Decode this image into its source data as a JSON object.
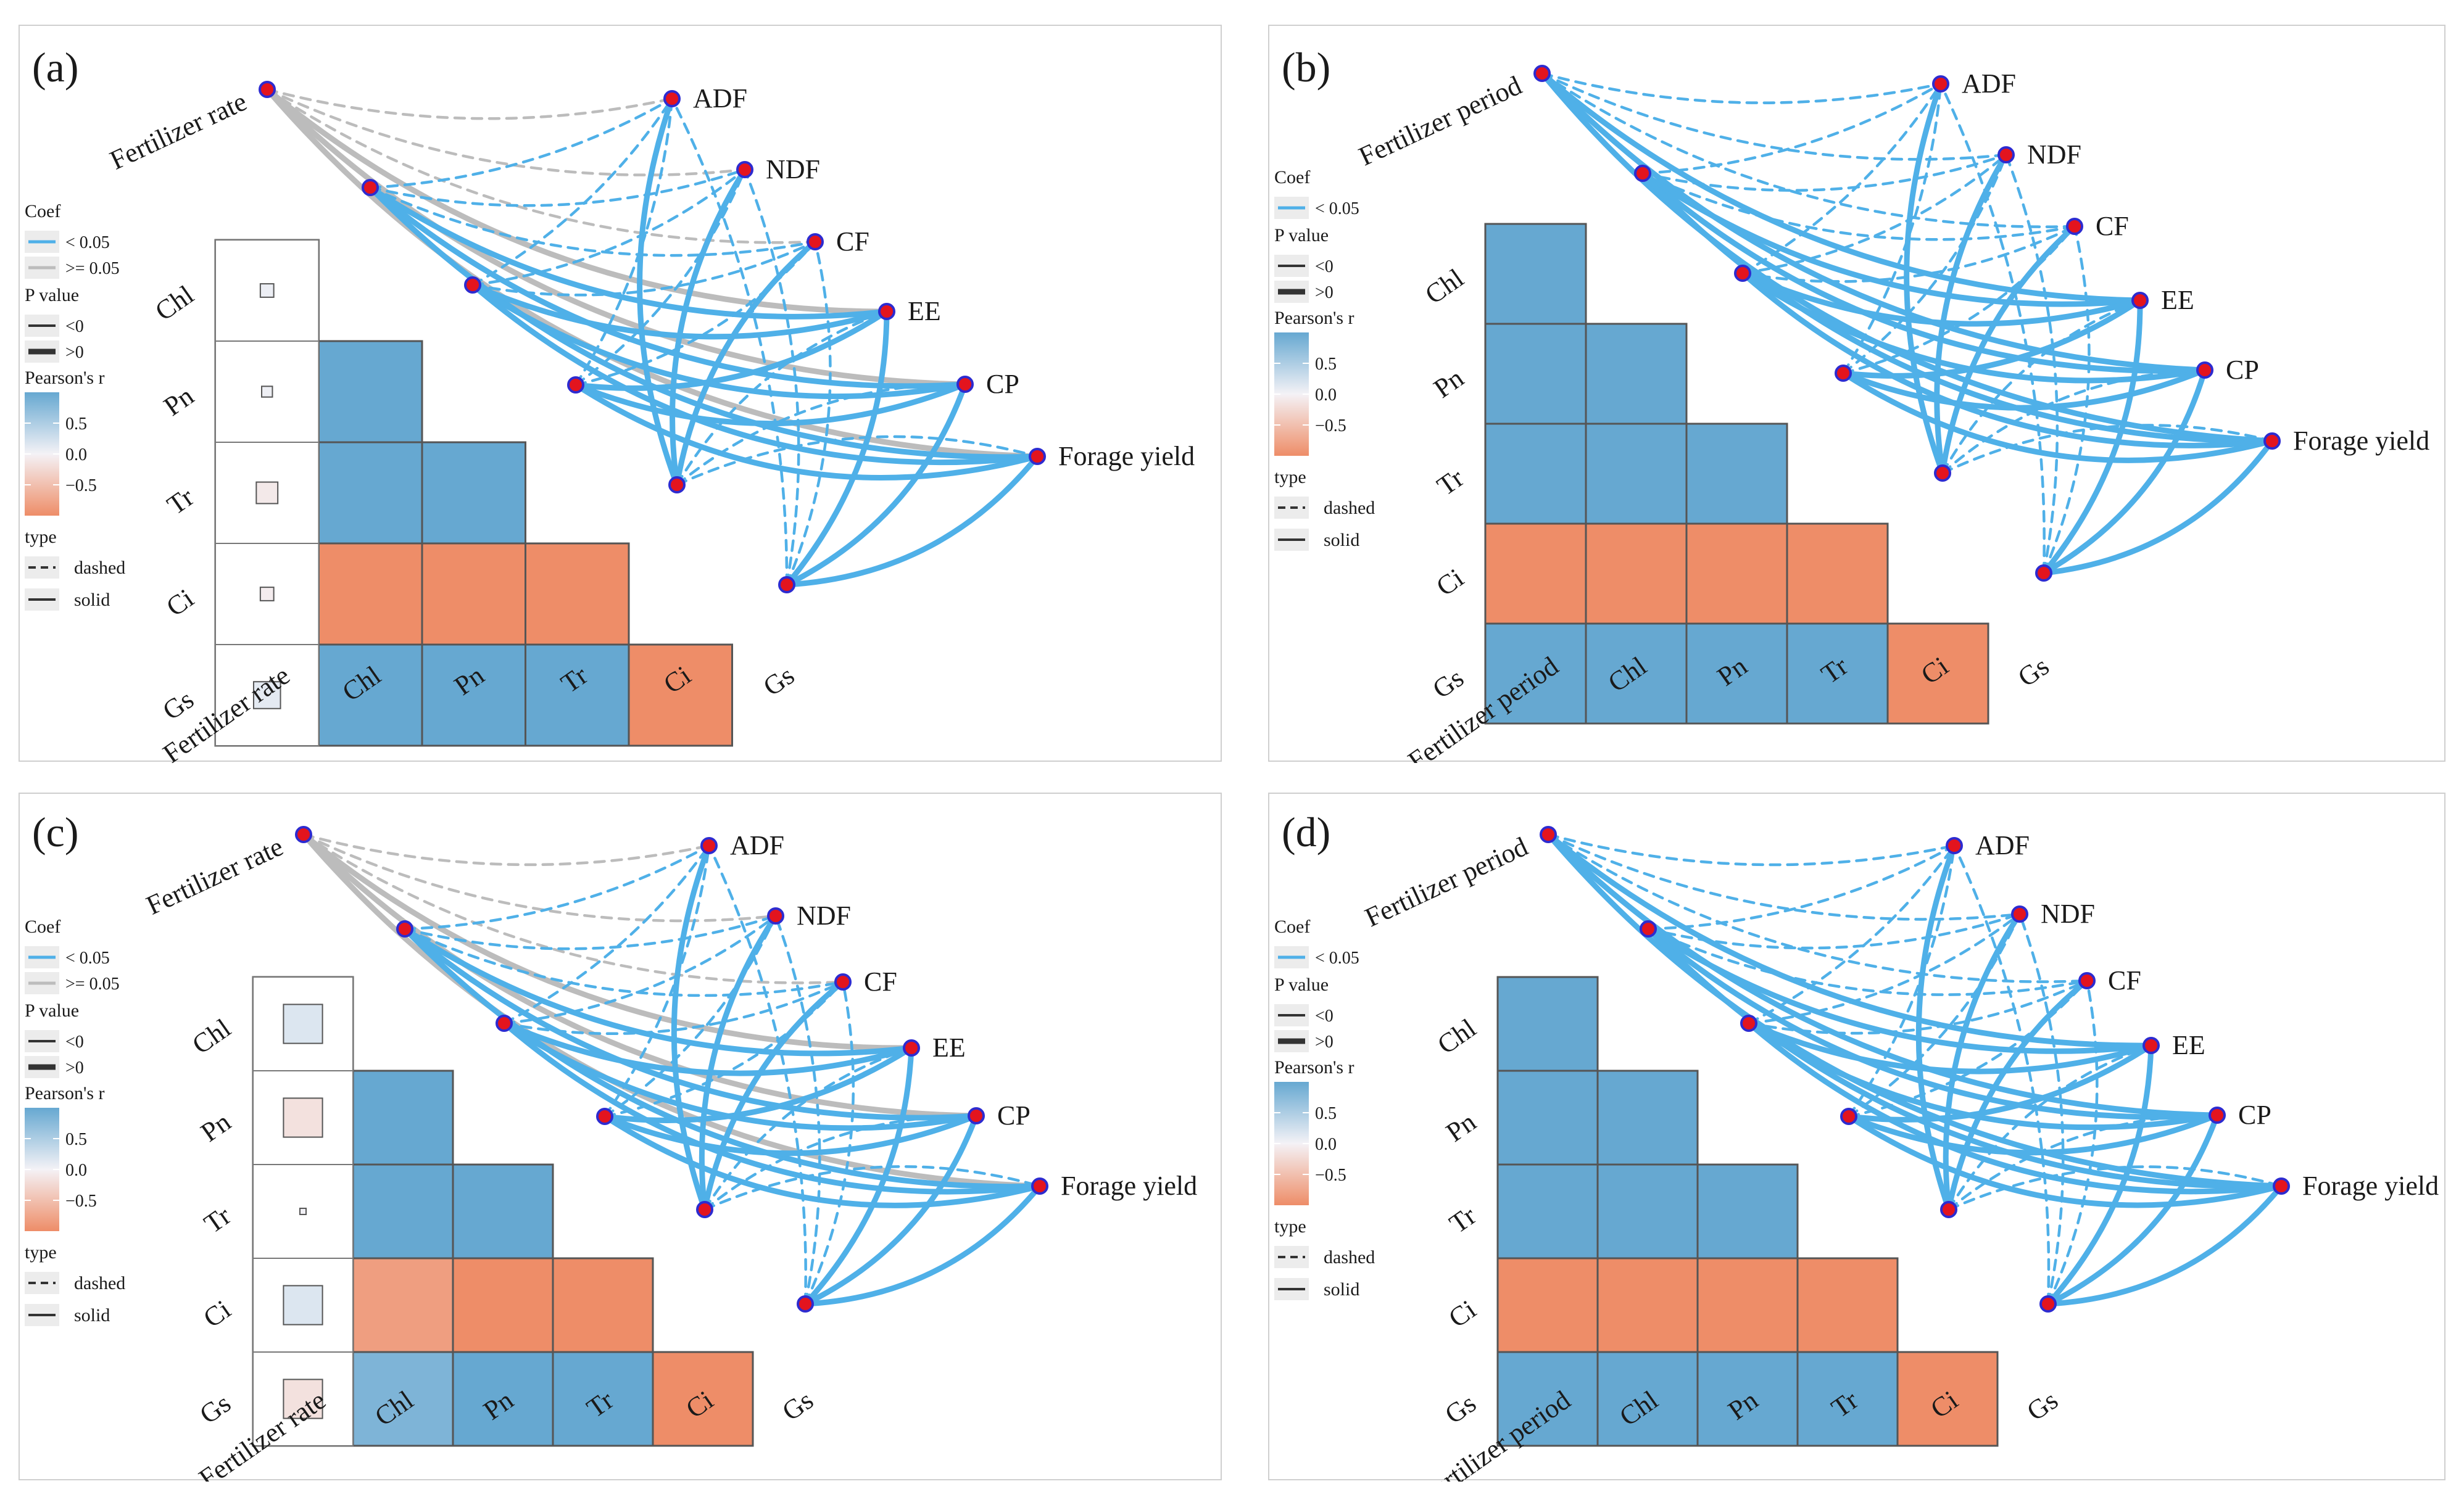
{
  "colors": {
    "pos": "#66a8d1",
    "neg": "#ee8d68",
    "sig": "#4fb0e8",
    "nonsig": "#bcbcbc",
    "node_fill": "#e3141e",
    "node_stroke": "#2d2bd0",
    "grid": "#555555"
  },
  "legend_text": {
    "coef_title": "Coef",
    "coef_sig": "< 0.05",
    "coef_nonsig": ">= 0.05",
    "p_title": "P value",
    "p_neg": "<0",
    "p_pos": ">0",
    "r_title": "Pearson's r",
    "r_ticks": [
      "0.5",
      "0.0",
      "−0.5"
    ],
    "type_title": "type",
    "type_dashed": "dashed",
    "type_solid": "solid"
  },
  "chart_data": [
    {
      "id": "a",
      "label": "(a)",
      "type": "heatmap",
      "variables": [
        "Fertilizer rate",
        "Chl",
        "Pn",
        "Tr",
        "Ci",
        "Gs"
      ],
      "targets": [
        "ADF",
        "NDF",
        "CF",
        "EE",
        "CP",
        "Forage yield"
      ],
      "correlation_r": [
        [
          1.0,
          0.05,
          0.04,
          -0.08,
          -0.05,
          0.1
        ],
        [
          0.05,
          1.0,
          0.9,
          0.9,
          -0.9,
          0.9
        ],
        [
          0.04,
          0.9,
          1.0,
          0.9,
          -0.9,
          0.9
        ],
        [
          -0.08,
          0.9,
          0.9,
          1.0,
          -0.9,
          0.9
        ],
        [
          -0.05,
          -0.9,
          -0.9,
          -0.9,
          1.0,
          -0.9
        ],
        [
          0.1,
          0.9,
          0.9,
          0.9,
          -0.9,
          1.0
        ]
      ],
      "links": [
        {
          "from": "Fertilizer rate",
          "coef": ">= 0.05",
          "types": [
            "dashed",
            "dashed",
            "dashed",
            "solid",
            "solid",
            "solid"
          ]
        },
        {
          "from": "Chl",
          "coef": "< 0.05",
          "types": [
            "dashed",
            "dashed",
            "dashed",
            "solid",
            "solid",
            "solid"
          ]
        },
        {
          "from": "Pn",
          "coef": "< 0.05",
          "types": [
            "dashed",
            "dashed",
            "dashed",
            "solid",
            "solid",
            "solid"
          ]
        },
        {
          "from": "Tr",
          "coef": "< 0.05",
          "types": [
            "dashed",
            "dashed",
            "dashed",
            "solid",
            "solid",
            "solid"
          ]
        },
        {
          "from": "Ci",
          "coef": "< 0.05",
          "types": [
            "solid",
            "solid",
            "solid",
            "dashed",
            "dashed",
            "dashed"
          ]
        },
        {
          "from": "Gs",
          "coef": "< 0.05",
          "types": [
            "dashed",
            "dashed",
            "dashed",
            "solid",
            "solid",
            "solid"
          ]
        }
      ],
      "legend": {
        "coef": [
          "< 0.05",
          ">= 0.05"
        ],
        "p_value": [
          "<0",
          ">0"
        ],
        "pearson_r_ticks": [
          0.5,
          0.0,
          -0.5
        ],
        "type": [
          "dashed",
          "solid"
        ]
      }
    },
    {
      "id": "b",
      "label": "(b)",
      "type": "heatmap",
      "variables": [
        "Fertilizer period",
        "Chl",
        "Pn",
        "Tr",
        "Ci",
        "Gs"
      ],
      "targets": [
        "ADF",
        "NDF",
        "CF",
        "EE",
        "CP",
        "Forage yield"
      ],
      "correlation_r": [
        [
          1.0,
          0.9,
          0.9,
          0.9,
          -0.9,
          0.9
        ],
        [
          0.9,
          1.0,
          0.9,
          0.9,
          -0.9,
          0.9
        ],
        [
          0.9,
          0.9,
          1.0,
          0.9,
          -0.9,
          0.9
        ],
        [
          0.9,
          0.9,
          0.9,
          1.0,
          -0.9,
          0.9
        ],
        [
          -0.9,
          -0.9,
          -0.9,
          -0.9,
          1.0,
          -0.9
        ],
        [
          0.9,
          0.9,
          0.9,
          0.9,
          -0.9,
          1.0
        ]
      ],
      "links": [
        {
          "from": "Fertilizer period",
          "coef": "< 0.05",
          "types": [
            "dashed",
            "dashed",
            "dashed",
            "solid",
            "solid",
            "solid"
          ]
        },
        {
          "from": "Chl",
          "coef": "< 0.05",
          "types": [
            "dashed",
            "dashed",
            "dashed",
            "solid",
            "solid",
            "solid"
          ]
        },
        {
          "from": "Pn",
          "coef": "< 0.05",
          "types": [
            "dashed",
            "dashed",
            "dashed",
            "solid",
            "solid",
            "solid"
          ]
        },
        {
          "from": "Tr",
          "coef": "< 0.05",
          "types": [
            "dashed",
            "dashed",
            "dashed",
            "solid",
            "solid",
            "solid"
          ]
        },
        {
          "from": "Ci",
          "coef": "< 0.05",
          "types": [
            "solid",
            "solid",
            "solid",
            "dashed",
            "dashed",
            "dashed"
          ]
        },
        {
          "from": "Gs",
          "coef": "< 0.05",
          "types": [
            "dashed",
            "dashed",
            "dashed",
            "solid",
            "solid",
            "solid"
          ]
        }
      ],
      "legend": {
        "coef": [
          "< 0.05"
        ],
        "p_value": [
          "<0",
          ">0"
        ],
        "pearson_r_ticks": [
          0.5,
          0.0,
          -0.5
        ],
        "type": [
          "dashed",
          "solid"
        ]
      }
    },
    {
      "id": "c",
      "label": "(c)",
      "type": "heatmap",
      "variables": [
        "Fertilizer rate",
        "Chl",
        "Pn",
        "Tr",
        "Ci",
        "Gs"
      ],
      "targets": [
        "ADF",
        "NDF",
        "CF",
        "EE",
        "CP",
        "Forage yield"
      ],
      "correlation_r": [
        [
          1.0,
          0.15,
          -0.15,
          0.02,
          0.15,
          -0.15
        ],
        [
          0.15,
          1.0,
          0.9,
          0.9,
          -0.75,
          0.75
        ],
        [
          -0.15,
          0.9,
          1.0,
          0.9,
          -0.9,
          0.9
        ],
        [
          0.02,
          0.9,
          0.9,
          1.0,
          -0.9,
          0.9
        ],
        [
          0.15,
          -0.75,
          -0.9,
          -0.9,
          1.0,
          -0.9
        ],
        [
          -0.15,
          0.75,
          0.9,
          0.9,
          -0.9,
          1.0
        ]
      ],
      "links": [
        {
          "from": "Fertilizer rate",
          "coef": ">= 0.05",
          "types": [
            "dashed",
            "dashed",
            "dashed",
            "solid",
            "solid",
            "solid"
          ]
        },
        {
          "from": "Chl",
          "coef": "< 0.05",
          "types": [
            "dashed",
            "dashed",
            "dashed",
            "solid",
            "solid",
            "solid"
          ]
        },
        {
          "from": "Pn",
          "coef": "< 0.05",
          "types": [
            "dashed",
            "dashed",
            "dashed",
            "solid",
            "solid",
            "solid"
          ]
        },
        {
          "from": "Tr",
          "coef": "< 0.05",
          "types": [
            "dashed",
            "dashed",
            "dashed",
            "solid",
            "solid",
            "solid"
          ]
        },
        {
          "from": "Ci",
          "coef": "< 0.05",
          "types": [
            "solid",
            "solid",
            "solid",
            "dashed",
            "dashed",
            "dashed"
          ]
        },
        {
          "from": "Gs",
          "coef": "< 0.05",
          "types": [
            "dashed",
            "dashed",
            "dashed",
            "solid",
            "solid",
            "solid"
          ]
        }
      ],
      "legend": {
        "coef": [
          "< 0.05",
          ">= 0.05"
        ],
        "p_value": [
          "<0",
          ">0"
        ],
        "pearson_r_ticks": [
          0.5,
          0.0,
          -0.5
        ],
        "type": [
          "dashed",
          "solid"
        ]
      }
    },
    {
      "id": "d",
      "label": "(d)",
      "type": "heatmap",
      "variables": [
        "Fertilizer period",
        "Chl",
        "Pn",
        "Tr",
        "Ci",
        "Gs"
      ],
      "targets": [
        "ADF",
        "NDF",
        "CF",
        "EE",
        "CP",
        "Forage yield"
      ],
      "correlation_r": [
        [
          1.0,
          0.9,
          0.9,
          0.9,
          -0.9,
          0.9
        ],
        [
          0.9,
          1.0,
          0.9,
          0.9,
          -0.9,
          0.9
        ],
        [
          0.9,
          0.9,
          1.0,
          0.9,
          -0.9,
          0.9
        ],
        [
          0.9,
          0.9,
          0.9,
          1.0,
          -0.9,
          0.9
        ],
        [
          -0.9,
          -0.9,
          -0.9,
          -0.9,
          1.0,
          -0.9
        ],
        [
          0.9,
          0.9,
          0.9,
          0.9,
          -0.9,
          1.0
        ]
      ],
      "links": [
        {
          "from": "Fertilizer period",
          "coef": "< 0.05",
          "types": [
            "dashed",
            "dashed",
            "dashed",
            "solid",
            "solid",
            "solid"
          ]
        },
        {
          "from": "Chl",
          "coef": "< 0.05",
          "types": [
            "dashed",
            "dashed",
            "dashed",
            "solid",
            "solid",
            "solid"
          ]
        },
        {
          "from": "Pn",
          "coef": "< 0.05",
          "types": [
            "dashed",
            "dashed",
            "dashed",
            "solid",
            "solid",
            "solid"
          ]
        },
        {
          "from": "Tr",
          "coef": "< 0.05",
          "types": [
            "dashed",
            "dashed",
            "dashed",
            "solid",
            "solid",
            "solid"
          ]
        },
        {
          "from": "Ci",
          "coef": "< 0.05",
          "types": [
            "solid",
            "solid",
            "solid",
            "dashed",
            "dashed",
            "dashed"
          ]
        },
        {
          "from": "Gs",
          "coef": "< 0.05",
          "types": [
            "dashed",
            "dashed",
            "dashed",
            "solid",
            "solid",
            "solid"
          ]
        }
      ],
      "legend": {
        "coef": [
          "< 0.05"
        ],
        "p_value": [
          "<0",
          ">0"
        ],
        "pearson_r_ticks": [
          0.5,
          0.0,
          -0.5
        ],
        "type": [
          "dashed",
          "solid"
        ]
      }
    }
  ]
}
